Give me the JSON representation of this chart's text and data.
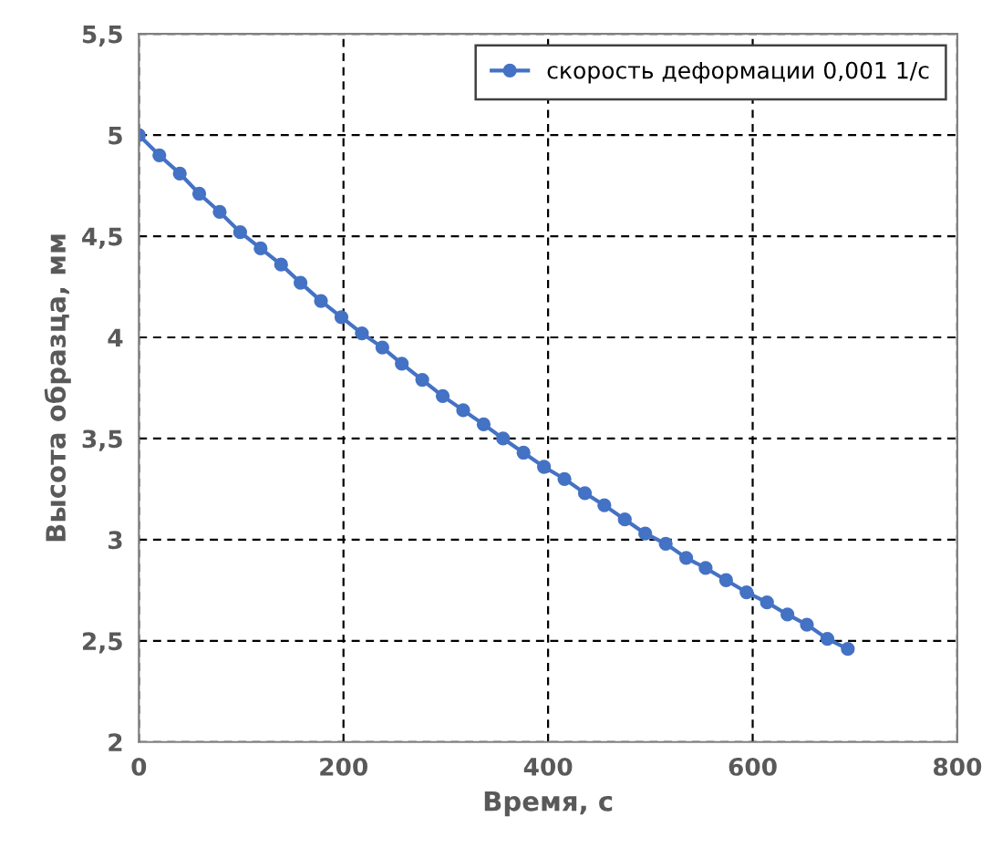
{
  "chart_data": {
    "type": "line",
    "xlabel": "Время, с",
    "ylabel": "Высота образца, мм",
    "x": [
      0,
      20,
      40,
      59,
      79,
      99,
      119,
      139,
      158,
      178,
      198,
      218,
      238,
      257,
      277,
      297,
      317,
      337,
      356,
      376,
      396,
      416,
      436,
      455,
      475,
      495,
      515,
      535,
      554,
      574,
      594,
      614,
      634,
      653,
      673,
      693
    ],
    "series": [
      {
        "name": "скорость деформации 0,001 1/с",
        "color": "#4472c4",
        "values": [
          5.0,
          4.9,
          4.81,
          4.71,
          4.62,
          4.52,
          4.44,
          4.36,
          4.27,
          4.18,
          4.1,
          4.02,
          3.95,
          3.87,
          3.79,
          3.71,
          3.64,
          3.57,
          3.5,
          3.43,
          3.36,
          3.3,
          3.23,
          3.17,
          3.1,
          3.03,
          2.98,
          2.91,
          2.86,
          2.8,
          2.74,
          2.69,
          2.63,
          2.58,
          2.51,
          2.46
        ]
      }
    ],
    "xlim": [
      0,
      800
    ],
    "xticks": [
      0,
      200,
      400,
      600,
      800
    ],
    "ylim": [
      2,
      5.5
    ],
    "yticks": [
      2,
      {
        "value": 2.5,
        "label": "2,5"
      },
      3,
      {
        "value": 3.5,
        "label": "3,5"
      },
      4,
      {
        "value": 4.5,
        "label": "4,5"
      },
      5,
      {
        "value": 5.5,
        "label": "5,5"
      }
    ],
    "grid": true,
    "legend": "top right",
    "marker": "circle",
    "line_style": "solid"
  }
}
